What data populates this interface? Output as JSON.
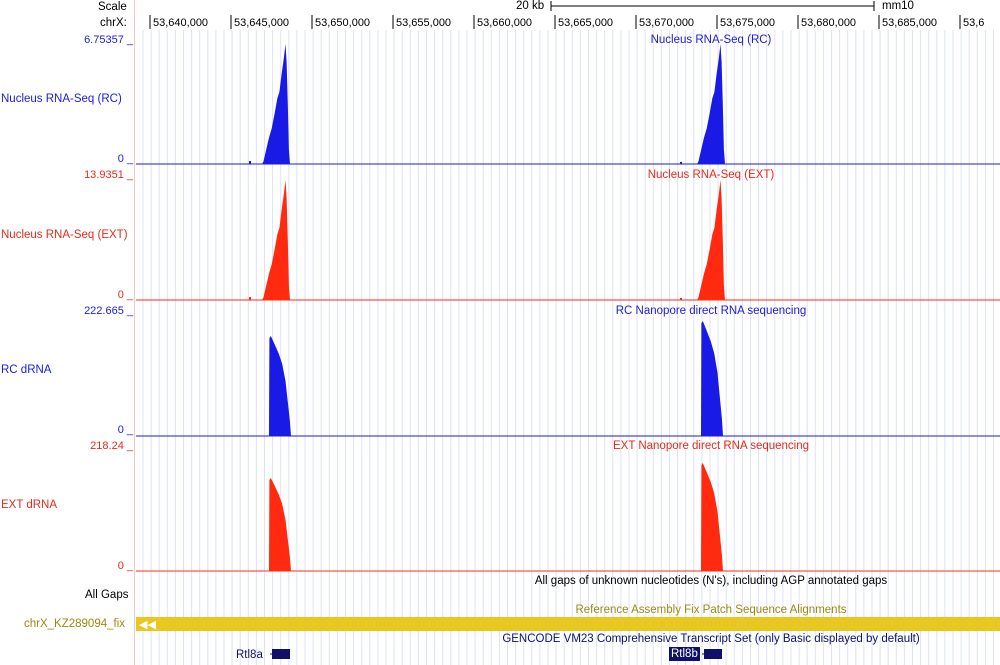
{
  "ruler": {
    "scale_label": "Scale",
    "chrom_label": "chrX:",
    "scalebar_label": "20 kb",
    "assembly": "mm10",
    "ticks": [
      "53,640,000",
      "53,645,000",
      "53,650,000",
      "53,655,000",
      "53,660,000",
      "53,665,000",
      "53,670,000",
      "53,675,000",
      "53,680,000",
      "53,685,000",
      "53,6"
    ]
  },
  "tracks": [
    {
      "label": "Nucleus RNA-Seq (RC)",
      "title": "Nucleus RNA-Seq (RC)",
      "max": "6.75357 _",
      "min": "0 _",
      "color": "#1a1ae6"
    },
    {
      "label": "Nucleus RNA-Seq (EXT)",
      "title": "Nucleus RNA-Seq (EXT)",
      "max": "13.9351 _",
      "min": "0 _",
      "color": "#ff2a10"
    },
    {
      "label": "RC dRNA",
      "title": "RC Nanopore direct RNA sequencing",
      "max": "222.665 _",
      "min": "0 _",
      "color": "#1a1ae6"
    },
    {
      "label": "EXT dRNA",
      "title": "EXT Nanopore direct RNA sequencing",
      "max": "218.24 _",
      "min": "0 _",
      "color": "#ff2a10"
    }
  ],
  "gaps": {
    "label": "All Gaps",
    "title": "All gaps of unknown nucleotides (N's), including AGP annotated gaps"
  },
  "fix": {
    "label": "chrX_KZ289094_fix",
    "title": "Reference Assembly Fix Patch Sequence Alignments",
    "color": "#e8c820"
  },
  "gencode": {
    "title": "GENCODE VM23 Comprehensive Transcript Set (only Basic displayed by default)",
    "genes": [
      "Rtl8a",
      "Rtl8b"
    ]
  }
}
